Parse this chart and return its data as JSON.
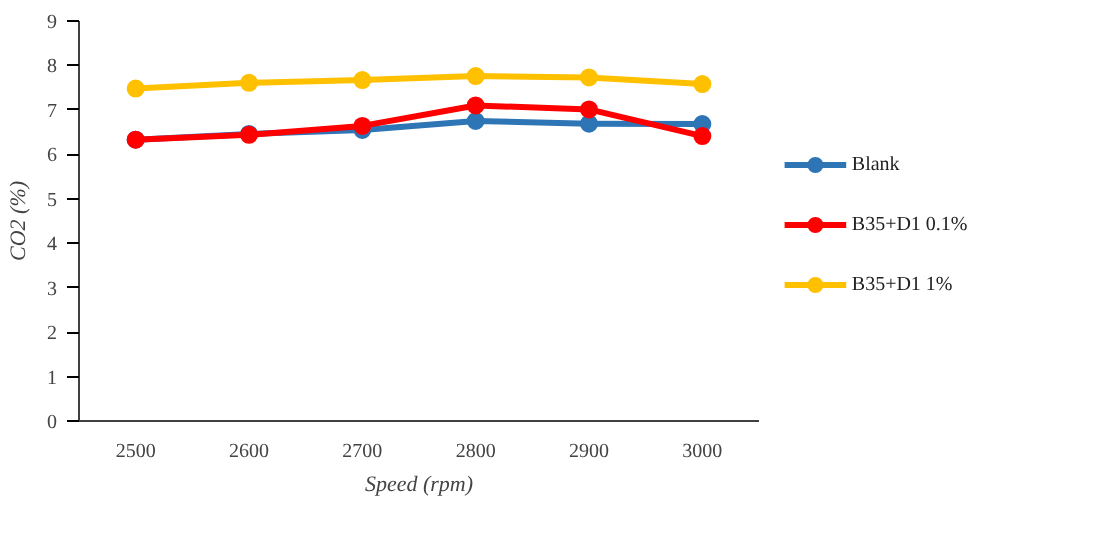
{
  "chart_data": {
    "type": "line",
    "xlabel": "Speed (rpm)",
    "ylabel": "CO2 (%)",
    "categories": [
      "2500",
      "2600",
      "2700",
      "2800",
      "2900",
      "3000"
    ],
    "series": [
      {
        "name": "Blank",
        "color": "#2e75b6",
        "values": [
          6.33,
          6.46,
          6.55,
          6.75,
          6.69,
          6.68
        ]
      },
      {
        "name": "B35+D1 0.1%",
        "color": "#ff0000",
        "values": [
          6.33,
          6.44,
          6.64,
          7.1,
          7.01,
          6.41
        ]
      },
      {
        "name": "B35+D1 1%",
        "color": "#ffc000",
        "values": [
          7.48,
          7.61,
          7.67,
          7.76,
          7.73,
          7.58
        ]
      }
    ],
    "ylim": [
      0,
      9
    ],
    "yticks": [
      0,
      1,
      2,
      3,
      4,
      5,
      6,
      7,
      8,
      9
    ],
    "grid": false,
    "legend": "right",
    "marker": "circle",
    "line_style": "solid"
  }
}
